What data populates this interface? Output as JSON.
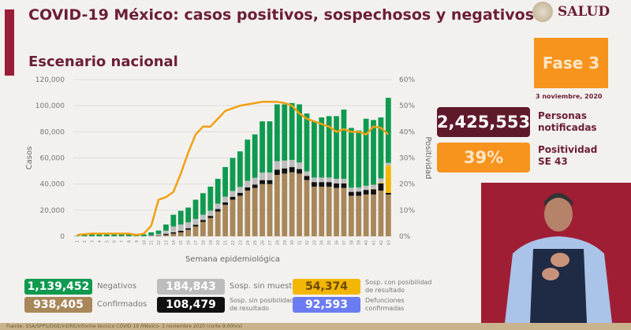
{
  "header": {
    "title": "COVID-19 México: casos positivos, sospechosos y negativos",
    "subtitle": "Escenario nacional",
    "logo_text": "SALUD"
  },
  "phase": {
    "label": "Fase 3",
    "date": "3 noviembre, 2020"
  },
  "stats": [
    {
      "value": "2,425,553",
      "label1": "Personas",
      "label2": "notificadas",
      "color": "#5e1a2b"
    },
    {
      "value": "39%",
      "label1": "Positividad",
      "label2": "SE 43",
      "color": "#f7941d"
    }
  ],
  "legend": [
    {
      "value": "1,139,452",
      "label1": "Negativos",
      "label2": "",
      "color": "#0f9a4f"
    },
    {
      "value": "184,843",
      "label1": "Sosp. sin muestra",
      "label2": "",
      "color": "#bdbdbd"
    },
    {
      "value": "54,374",
      "label1": "Sosp. con posibilidad",
      "label2": "de resultado",
      "color": "#f2b705"
    },
    {
      "value": "938,405",
      "label1": "Confirmados",
      "label2": "",
      "color": "#a8875a"
    },
    {
      "value": "108,479",
      "label1": "Sosp. sin posibilidad",
      "label2": "de resultado",
      "color": "#111111"
    },
    {
      "value": "92,593",
      "label1": "Defunciones",
      "label2": "confirmadas",
      "color": "#6b7cf2"
    }
  ],
  "footer": "Fuente: SSA/SPPS/DGE/InDRE/Informe técnico COVID 19 /México- 3 noviembre 2020 (corte 9:00hrs)",
  "chart_data": {
    "type": "bar",
    "stacked": true,
    "xlabel": "Semana epidemiológica",
    "ylabel": "Casos",
    "y2label": "Positividad",
    "ylim": [
      0,
      120000
    ],
    "y2lim": [
      0,
      60
    ],
    "yticks": [
      "0",
      "20,000",
      "40,000",
      "60,000",
      "80,000",
      "100,000",
      "120,000"
    ],
    "y2ticks": [
      "0%",
      "10%",
      "20%",
      "30%",
      "40%",
      "50%",
      "60%"
    ],
    "categories": [
      "1",
      "2",
      "3",
      "4",
      "5",
      "6",
      "7",
      "8",
      "9",
      "10",
      "11",
      "12",
      "13",
      "14",
      "15",
      "16",
      "17",
      "18",
      "19",
      "20",
      "21",
      "22",
      "23",
      "24",
      "25",
      "26",
      "27",
      "28",
      "29",
      "30",
      "31",
      "32",
      "33",
      "34",
      "35",
      "36",
      "37",
      "38",
      "39",
      "40",
      "41",
      "42",
      "43"
    ],
    "series": [
      {
        "name": "Confirmados",
        "color": "#a8875a",
        "values": [
          0,
          0,
          0,
          0,
          0,
          0,
          0,
          0,
          0,
          0,
          200,
          500,
          1000,
          2000,
          3000,
          5000,
          7500,
          11000,
          14000,
          19000,
          24000,
          28000,
          31000,
          35000,
          37000,
          40000,
          40000,
          47000,
          48000,
          49000,
          48000,
          43000,
          38000,
          38000,
          38000,
          37000,
          37000,
          31000,
          31000,
          32000,
          32000,
          35000,
          32000
        ]
      },
      {
        "name": "Sosp. sin posibilidad de resultado",
        "color": "#111111",
        "values": [
          0,
          0,
          0,
          0,
          0,
          0,
          0,
          0,
          0,
          0,
          100,
          300,
          800,
          1000,
          1200,
          1200,
          1300,
          1500,
          1600,
          1800,
          2000,
          2200,
          2300,
          2500,
          2600,
          3000,
          3000,
          4000,
          4000,
          4000,
          3500,
          3200,
          3500,
          3500,
          3500,
          3500,
          3500,
          3000,
          3200,
          3500,
          4000,
          5500,
          1200
        ]
      },
      {
        "name": "Sosp. con posibilidad de resultado",
        "color": "#f2b705",
        "values": [
          0,
          0,
          0,
          0,
          0,
          0,
          0,
          0,
          0,
          0,
          0,
          0,
          0,
          0,
          0,
          0,
          0,
          0,
          0,
          0,
          0,
          0,
          0,
          0,
          0,
          0,
          0,
          0,
          0,
          0,
          0,
          0,
          0,
          0,
          0,
          0,
          0,
          0,
          0,
          0,
          300,
          600,
          21000
        ]
      },
      {
        "name": "Sosp. sin muestra",
        "color": "#bdbdbd",
        "values": [
          0,
          0,
          0,
          0,
          0,
          0,
          0,
          0,
          0,
          0,
          400,
          1000,
          2500,
          4500,
          4800,
          4500,
          4500,
          4000,
          4000,
          4200,
          4300,
          4500,
          4500,
          5000,
          5200,
          5800,
          5800,
          6500,
          6000,
          5500,
          5000,
          3500,
          3500,
          3500,
          3500,
          3500,
          3500,
          3200,
          3200,
          3200,
          3200,
          3200,
          2000
        ]
      },
      {
        "name": "Negativos",
        "color": "#0f9a4f",
        "values": [
          300,
          1000,
          1500,
          1800,
          2000,
          1800,
          1800,
          1800,
          1500,
          1500,
          2300,
          2600,
          4700,
          9000,
          10500,
          11300,
          14700,
          16500,
          18400,
          19000,
          22700,
          25300,
          27200,
          31500,
          33200,
          39200,
          39200,
          43500,
          43000,
          43500,
          44500,
          44300,
          43000,
          46000,
          47000,
          48000,
          53000,
          45800,
          43600,
          51300,
          49500,
          46700,
          49800
        ]
      }
    ],
    "line": {
      "name": "Positividad",
      "color": "#f0a012",
      "axis": "right",
      "values": [
        0.5,
        0.8,
        1,
        1,
        1,
        1,
        1,
        1,
        0.5,
        1,
        4,
        14,
        15,
        17,
        24,
        32,
        39,
        42,
        42,
        45,
        48,
        49,
        50,
        50.5,
        51,
        51.5,
        51.5,
        51.5,
        51,
        50,
        47,
        45,
        44,
        43,
        42,
        40,
        41,
        40,
        40,
        39,
        42,
        41.5,
        39
      ]
    }
  }
}
